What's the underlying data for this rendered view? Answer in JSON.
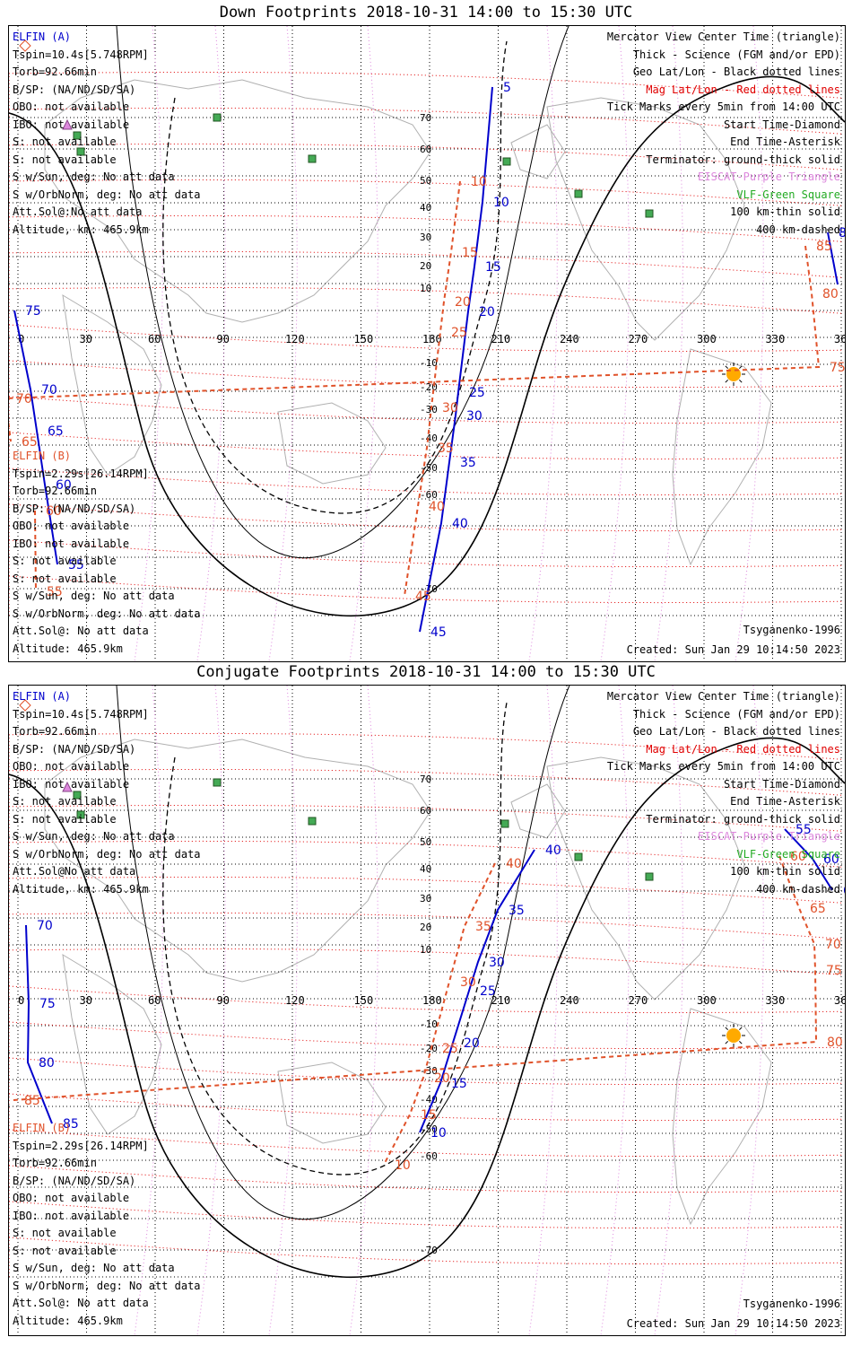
{
  "top": {
    "title": "Down Footprints 2018-10-31 14:00 to 15:30 UTC",
    "elfin_a": {
      "name": "ELFIN (A)",
      "lines": [
        "Tspin=10.4s[5.748RPM]",
        "Torb=92.66min",
        "B/SP: (NA/ND/SD/SA)",
        "OBO: not available",
        "IBO: not available",
        "S: not available",
        "S: not available",
        "S w/Sun, deg: No att data",
        "S w/OrbNorm, deg: No att data",
        "Att.Sol@:No att data",
        "Altitude, km: 465.9km"
      ]
    },
    "elfin_b": {
      "name": "ELFIN (B)",
      "lines": [
        "Tspin=2.29s[26.14RPM]",
        "Torb=92.66min",
        "B/SP: (NA/ND/SD/SA)",
        "OBO: not available",
        "IBO: not available",
        "S: not available",
        "S: not available",
        "S w/Sun, deg: No att data",
        "S w/OrbNorm, deg: No att data",
        "Att.Sol@: No att data",
        "Altitude: 465.9km"
      ]
    },
    "model": "Tsyganenko-1996",
    "created": "Created: Sun Jan 29 10:14:50 2023",
    "track_a": [
      [
        551,
        68,
        "5"
      ],
      [
        540,
        196,
        "10"
      ],
      [
        531,
        268,
        "15"
      ],
      [
        524,
        318,
        "20"
      ],
      [
        513,
        408,
        "25"
      ],
      [
        510,
        434,
        "30"
      ],
      [
        503,
        486,
        "35"
      ],
      [
        494,
        554,
        "40"
      ],
      [
        470,
        675,
        "45"
      ]
    ],
    "track_a2": [
      [
        18,
        317,
        "75"
      ],
      [
        36,
        405,
        "70"
      ],
      [
        43,
        451,
        "65"
      ],
      [
        52,
        511,
        "60"
      ],
      [
        66,
        600,
        "55"
      ]
    ],
    "track_a3": [
      [
        925,
        230,
        "85"
      ],
      [
        936,
        288,
        "80"
      ]
    ],
    "track_b": [
      [
        515,
        173,
        "10"
      ],
      [
        505,
        252,
        "15"
      ],
      [
        497,
        307,
        "20"
      ],
      [
        493,
        341,
        "25"
      ],
      [
        483,
        425,
        "30"
      ],
      [
        478,
        470,
        "35"
      ],
      [
        468,
        535,
        "40"
      ],
      [
        453,
        635,
        "45"
      ]
    ],
    "track_b2": [
      [
        41,
        540,
        "60"
      ],
      [
        42,
        630,
        "55"
      ]
    ],
    "track_b3": [
      [
        900,
        245,
        "85"
      ],
      [
        907,
        298,
        "80"
      ],
      [
        915,
        380,
        "75"
      ],
      [
        8,
        415,
        "70"
      ],
      [
        14,
        463,
        "65"
      ]
    ]
  },
  "bottom": {
    "title": "Conjugate Footprints 2018-10-31 14:00 to 15:30 UTC",
    "elfin_a": {
      "name": "ELFIN (A)",
      "lines": [
        "Tspin=10.4s[5.748RPM]",
        "Torb=92.66min",
        "B/SP: (NA/ND/SD/SA)",
        "OBO: not available",
        "IBO: not available",
        "S: not available",
        "S: not available",
        "S w/Sun, deg: No att data",
        "S w/OrbNorm, deg: No att data",
        "Att.Sol@No att data",
        "Altitude, km: 465.9km"
      ]
    },
    "elfin_b": {
      "name": "ELFIN (B)",
      "lines": [
        "Tspin=2.29s[26.14RPM]",
        "Torb=92.66min",
        "B/SP: (NA/ND/SD/SA)",
        "OBO: not available",
        "IBO: not available",
        "S: not available",
        "S: not available",
        "S w/Sun, deg: No att data",
        "S w/OrbNorm, deg: No att data",
        "Att.Sol@: No att data",
        "Altitude: 465.9km"
      ]
    },
    "model": "Tsyganenko-1996",
    "created": "Created: Sun Jan 29 10:14:50 2023",
    "track_a": [
      [
        598,
        183,
        "40"
      ],
      [
        557,
        250,
        "35"
      ],
      [
        535,
        308,
        "30"
      ],
      [
        525,
        340,
        "25"
      ],
      [
        507,
        398,
        "20"
      ],
      [
        493,
        443,
        "15"
      ],
      [
        470,
        498,
        "10"
      ]
    ],
    "track_a2": [
      [
        877,
        160,
        "55"
      ],
      [
        908,
        193,
        "60"
      ],
      [
        930,
        228,
        "65"
      ]
    ],
    "track_a3": [
      [
        31,
        267,
        "70"
      ],
      [
        34,
        354,
        "75"
      ],
      [
        33,
        420,
        "80"
      ],
      [
        60,
        488,
        "85"
      ]
    ],
    "track_b": [
      [
        554,
        198,
        "40"
      ],
      [
        520,
        268,
        "35"
      ],
      [
        503,
        330,
        "30"
      ],
      [
        483,
        404,
        "25"
      ],
      [
        474,
        437,
        "20"
      ],
      [
        459,
        478,
        "15"
      ],
      [
        430,
        534,
        "10"
      ]
    ],
    "track_b2": [
      [
        871,
        190,
        "60"
      ],
      [
        893,
        248,
        "65"
      ],
      [
        910,
        288,
        "70"
      ],
      [
        911,
        317,
        "75"
      ],
      [
        912,
        397,
        "80"
      ],
      [
        17,
        462,
        "85"
      ]
    ],
    "track_b3": []
  },
  "legend": {
    "lines": [
      "Mercator View Center Time (triangle)",
      "Thick - Science (FGM and/or EPD)",
      "Geo Lat/Lon - Black dotted lines",
      "Mag Lat/Lon - Red dotted lines",
      "Tick Marks every 5min from 14:00 UTC",
      "Start Time-Diamond",
      "End Time-Asterisk",
      "Terminator: ground-thick solid",
      "EISCAT-Purple Triangle",
      "VLF-Green Square",
      "100 km-thin solid",
      "400 km-dashed"
    ]
  },
  "axis": {
    "lon_ticks": [
      "0",
      "30",
      "60",
      "90",
      "120",
      "150",
      "180",
      "210",
      "240",
      "270",
      "300",
      "330",
      "360"
    ],
    "lat_ticks": [
      "70",
      "60",
      "50",
      "40",
      "30",
      "20",
      "10",
      "-10",
      "-20",
      "-30",
      "-40",
      "-50",
      "-60",
      "-70"
    ]
  },
  "colors": {
    "elfin_a": "#0000cc",
    "elfin_b": "#e0522a",
    "mag_grid": "#e00000",
    "eiscat": "#dd88dd",
    "vlf": "#44aa55",
    "sun": "#ffaa00"
  }
}
